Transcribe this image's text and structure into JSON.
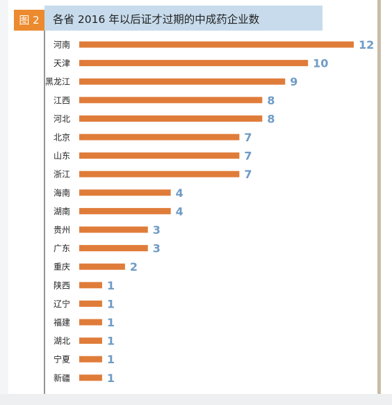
{
  "figure_label": "图 2",
  "colors": {
    "bar": "#e07c3a",
    "value_label": "#6f9bc6",
    "axis": "#2b2b2b",
    "title_band": "#c7dbec",
    "tag": "#ec8a2f"
  },
  "chart_data": {
    "type": "bar",
    "orientation": "horizontal",
    "title": "各省 2016 年以后证才过期的中成药企业数",
    "xlabel": "",
    "ylabel": "",
    "xlim": [
      0,
      12
    ],
    "grid": false,
    "legend": "none",
    "categories": [
      "河南",
      "天津",
      "黑龙江",
      "江西",
      "河北",
      "北京",
      "山东",
      "浙江",
      "海南",
      "湖南",
      "贵州",
      "广东",
      "重庆",
      "陕西",
      "辽宁",
      "福建",
      "湖北",
      "宁夏",
      "新疆"
    ],
    "values": [
      12,
      10,
      9,
      8,
      8,
      7,
      7,
      7,
      4,
      4,
      3,
      3,
      2,
      1,
      1,
      1,
      1,
      1,
      1
    ]
  }
}
